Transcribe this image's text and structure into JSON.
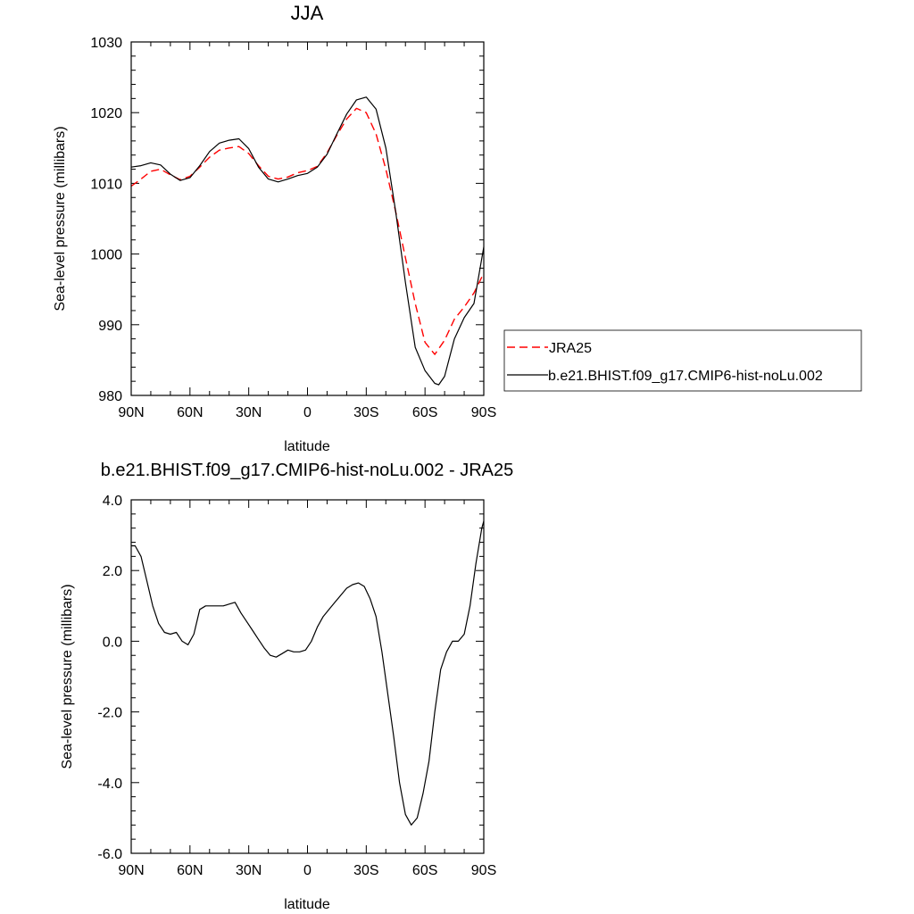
{
  "chart_data": [
    {
      "type": "line",
      "title": "JJA",
      "xlabel": "latitude",
      "ylabel": "Sea-level pressure (millibars)",
      "xlim": [
        90,
        -90
      ],
      "ylim": [
        980,
        1030
      ],
      "x_ticks": [
        90,
        60,
        30,
        0,
        -30,
        -60,
        -90
      ],
      "x_tick_labels": [
        "90N",
        "60N",
        "30N",
        "0",
        "30S",
        "60S",
        "90S"
      ],
      "y_ticks": [
        980,
        990,
        1000,
        1010,
        1020,
        1030
      ],
      "y_tick_labels": [
        "980",
        "990",
        "1000",
        "1010",
        "1020",
        "1030"
      ],
      "grid": false,
      "legend_position": "right",
      "series": [
        {
          "name": "JRA25",
          "color": "#ff0000",
          "dash": "dashed",
          "x": [
            90,
            85,
            80,
            75,
            70,
            65,
            60,
            55,
            50,
            45,
            40,
            35,
            30,
            25,
            20,
            15,
            10,
            5,
            0,
            -5,
            -10,
            -15,
            -20,
            -25,
            -30,
            -35,
            -40,
            -45,
            -50,
            -55,
            -60,
            -65,
            -70,
            -75,
            -80,
            -85,
            -90
          ],
          "y": [
            1009.6,
            1010.6,
            1011.7,
            1012.0,
            1011.2,
            1010.5,
            1011.0,
            1012.3,
            1013.7,
            1014.7,
            1015.0,
            1015.2,
            1014.2,
            1012.5,
            1011.0,
            1010.6,
            1010.9,
            1011.5,
            1011.8,
            1012.4,
            1014.3,
            1016.8,
            1019.1,
            1020.6,
            1020.0,
            1017.0,
            1012.0,
            1006.0,
            999.5,
            993.0,
            987.5,
            985.8,
            987.8,
            990.8,
            992.5,
            994.5,
            997.3
          ]
        },
        {
          "name": "b.e21.BHIST.f09_g17.CMIP6-hist-noLu.002",
          "color": "#000000",
          "dash": "solid",
          "x": [
            90,
            85,
            80,
            75,
            70,
            65,
            60,
            55,
            50,
            45,
            40,
            35,
            30,
            25,
            20,
            15,
            10,
            5,
            0,
            -5,
            -10,
            -15,
            -20,
            -25,
            -30,
            -35,
            -40,
            -45,
            -50,
            -55,
            -60,
            -65,
            -67,
            -70,
            -75,
            -80,
            -85,
            -90
          ],
          "y": [
            1012.3,
            1012.5,
            1012.9,
            1012.6,
            1011.3,
            1010.4,
            1010.8,
            1012.5,
            1014.5,
            1015.7,
            1016.1,
            1016.3,
            1014.9,
            1012.3,
            1010.6,
            1010.2,
            1010.6,
            1011.1,
            1011.4,
            1012.3,
            1014.1,
            1017.0,
            1019.8,
            1021.8,
            1022.2,
            1020.5,
            1015.0,
            1006.0,
            996.0,
            986.8,
            983.5,
            981.7,
            981.5,
            982.7,
            988.0,
            991.0,
            993.0,
            1001.0
          ]
        }
      ]
    },
    {
      "type": "line",
      "title": "b.e21.BHIST.f09_g17.CMIP6-hist-noLu.002 - JRA25",
      "xlabel": "latitude",
      "ylabel": "Sea-level pressure (millibars)",
      "xlim": [
        90,
        -90
      ],
      "ylim": [
        -6.0,
        4.0
      ],
      "x_ticks": [
        90,
        60,
        30,
        0,
        -30,
        -60,
        -90
      ],
      "x_tick_labels": [
        "90N",
        "60N",
        "30N",
        "0",
        "30S",
        "60S",
        "90S"
      ],
      "y_ticks": [
        -6,
        -4,
        -2,
        0,
        2,
        4
      ],
      "y_tick_labels": [
        "-6.0",
        "-4.0",
        "-2.0",
        "0.0",
        "2.0",
        "4.0"
      ],
      "grid": false,
      "series": [
        {
          "color": "#000000",
          "dash": "solid",
          "x": [
            90,
            88,
            85,
            82,
            79,
            76,
            73,
            70,
            67,
            64,
            61,
            58,
            55,
            52,
            49,
            46,
            43,
            40,
            37,
            34,
            31,
            28,
            25,
            22,
            19,
            16,
            13,
            10,
            7,
            4,
            1,
            -2,
            -5,
            -8,
            -11,
            -14,
            -17,
            -20,
            -23,
            -26,
            -29,
            -32,
            -35,
            -38,
            -41,
            -44,
            -47,
            -50,
            -53,
            -56,
            -59,
            -62,
            -65,
            -68,
            -71,
            -74,
            -77,
            -80,
            -83,
            -86,
            -89,
            -90
          ],
          "y": [
            2.7,
            2.7,
            2.4,
            1.7,
            1.0,
            0.5,
            0.25,
            0.2,
            0.25,
            0.0,
            -0.1,
            0.2,
            0.9,
            1.0,
            1.0,
            1.0,
            1.0,
            1.05,
            1.1,
            0.8,
            0.55,
            0.3,
            0.05,
            -0.2,
            -0.4,
            -0.45,
            -0.35,
            -0.25,
            -0.3,
            -0.3,
            -0.25,
            0.0,
            0.4,
            0.7,
            0.9,
            1.1,
            1.3,
            1.5,
            1.6,
            1.65,
            1.55,
            1.2,
            0.7,
            -0.3,
            -1.5,
            -2.7,
            -4.0,
            -4.9,
            -5.2,
            -5.0,
            -4.3,
            -3.4,
            -2.0,
            -0.8,
            -0.3,
            0.0,
            0.0,
            0.2,
            1.0,
            2.2,
            3.2,
            3.4
          ]
        }
      ]
    }
  ]
}
